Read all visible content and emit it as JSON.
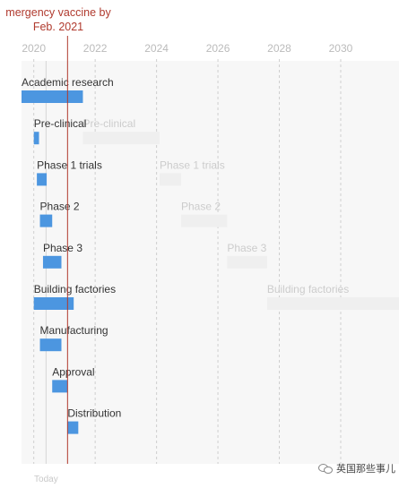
{
  "annotation": {
    "text_line1": "mergency vaccine by",
    "text_line2": "Feb. 2021",
    "marker_year": 2021.1,
    "color": "#b03a2e"
  },
  "watermark": {
    "text": "英国那些事儿",
    "icon": "wechat-icon"
  },
  "chart_data": {
    "type": "bar",
    "orientation": "horizontal-timeline",
    "x_ticks": [
      2020,
      2022,
      2024,
      2026,
      2028,
      2030
    ],
    "xlim": [
      2019.6,
      2031.9
    ],
    "today_label": "Today",
    "today_year": 2020.4,
    "grid": true,
    "colors": {
      "emergency": "#4c96e0",
      "traditional": "#efefef",
      "traditional_label": "#cccccc",
      "label": "#333333"
    },
    "stages": [
      {
        "label": "Academic research",
        "emergency": [
          2019.6,
          2021.6
        ],
        "traditional": null
      },
      {
        "label": "Pre-clinical",
        "emergency": [
          2020.0,
          2020.17
        ],
        "traditional": [
          2021.6,
          2024.1
        ]
      },
      {
        "label": "Phase 1 trials",
        "emergency": [
          2020.1,
          2020.42
        ],
        "traditional": [
          2024.1,
          2024.8
        ]
      },
      {
        "label": "Phase 2",
        "emergency": [
          2020.2,
          2020.6
        ],
        "traditional": [
          2024.8,
          2026.3
        ]
      },
      {
        "label": "Phase 3",
        "emergency": [
          2020.3,
          2020.9
        ],
        "traditional": [
          2026.3,
          2027.6
        ]
      },
      {
        "label": "Building factories",
        "emergency": [
          2020.0,
          2021.3
        ],
        "traditional": [
          2027.6,
          2031.9
        ]
      },
      {
        "label": "Manufacturing",
        "emergency": [
          2020.2,
          2020.9
        ],
        "traditional": null
      },
      {
        "label": "Approval",
        "emergency": [
          2020.6,
          2021.1
        ],
        "traditional": null
      },
      {
        "label": "Distribution",
        "emergency": [
          2021.1,
          2021.45
        ],
        "traditional": null
      }
    ]
  }
}
